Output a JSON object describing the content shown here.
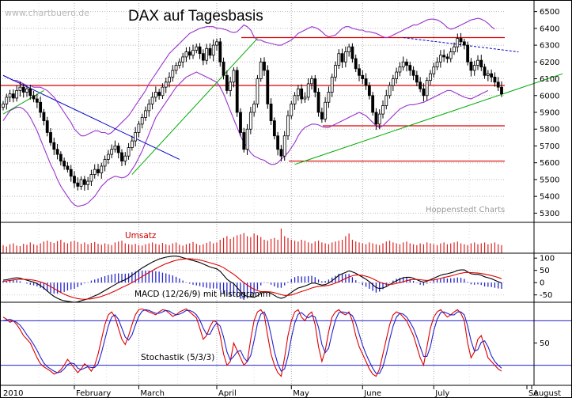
{
  "chart_data": {
    "type": "line",
    "title": "DAX auf Tagesbasis",
    "watermark": "www.chartbuero.de",
    "credit": "Hoppenstedt Charts",
    "x_labels": [
      "2010",
      "February",
      "March",
      "April",
      "May",
      "June",
      "July",
      "August",
      "Se"
    ],
    "price_panel": {
      "y_ticks": [
        5300,
        5400,
        5500,
        5600,
        5700,
        5800,
        5900,
        6000,
        6100,
        6200,
        6300,
        6400,
        6500
      ],
      "ylim": [
        5250,
        6550
      ],
      "horizontal_lines": [
        6345,
        6060,
        5820,
        5610
      ],
      "closes": [
        5950,
        5990,
        6010,
        5985,
        6030,
        6050,
        6020,
        6040,
        6000,
        5980,
        5960,
        5900,
        5850,
        5780,
        5720,
        5680,
        5650,
        5610,
        5580,
        5560,
        5520,
        5480,
        5460,
        5500,
        5470,
        5490,
        5530,
        5560,
        5540,
        5580,
        5620,
        5650,
        5680,
        5700,
        5660,
        5610,
        5640,
        5690,
        5730,
        5780,
        5830,
        5870,
        5910,
        5950,
        5990,
        6020,
        6000,
        6050,
        6080,
        6110,
        6150,
        6180,
        6200,
        6230,
        6260,
        6240,
        6270,
        6290,
        6250,
        6210,
        6280,
        6240,
        6300,
        6320,
        6200,
        6120,
        6030,
        6080,
        6150,
        5900,
        5780,
        5680,
        5800,
        5900,
        5950,
        6100,
        6200,
        6150,
        5950,
        5850,
        5760,
        5680,
        5640,
        5760,
        5880,
        5950,
        6000,
        6040,
        5980,
        5990,
        6070,
        6100,
        6020,
        5900,
        5860,
        5960,
        6020,
        6110,
        6180,
        6250,
        6200,
        6260,
        6290,
        6220,
        6160,
        6120,
        6100,
        6060,
        6000,
        5900,
        5830,
        5890,
        5940,
        6000,
        6060,
        6100,
        6140,
        6170,
        6200,
        6180,
        6150,
        6120,
        6080,
        6040,
        6000,
        6090,
        6130,
        6170,
        6200,
        6240,
        6230,
        6220,
        6260,
        6290,
        6340,
        6320,
        6300,
        6200,
        6150,
        6180,
        6210,
        6170,
        6120,
        6130,
        6110,
        6080,
        6050,
        6010
      ],
      "bollinger_upper": [
        6120,
        6110,
        6100,
        6090,
        6090,
        6080,
        6070,
        6060,
        6060,
        6050,
        6050,
        6050,
        6040,
        6030,
        6010,
        5990,
        5960,
        5930,
        5900,
        5870,
        5840,
        5800,
        5780,
        5760,
        5760,
        5770,
        5780,
        5790,
        5790,
        5780,
        5780,
        5770,
        5780,
        5800,
        5820,
        5840,
        5860,
        5880,
        5910,
        5940,
        5970,
        6000,
        6030,
        6070,
        6100,
        6130,
        6160,
        6190,
        6220,
        6250,
        6270,
        6290,
        6310,
        6330,
        6350,
        6370,
        6380,
        6390,
        6400,
        6405,
        6410,
        6410,
        6410,
        6400,
        6400,
        6395,
        6390,
        6380,
        6375,
        6380,
        6400,
        6420,
        6410,
        6390,
        6350,
        6330,
        6330,
        6320,
        6315,
        6310,
        6305,
        6300,
        6300,
        6310,
        6320,
        6330,
        6350,
        6370,
        6380,
        6390,
        6400,
        6410,
        6405,
        6395,
        6380,
        6360,
        6350,
        6355,
        6360,
        6380,
        6400,
        6410,
        6410,
        6400,
        6395,
        6390,
        6390,
        6380,
        6380,
        6375,
        6370,
        6360,
        6350,
        6345,
        6350,
        6360,
        6370,
        6380,
        6390,
        6400,
        6410,
        6420,
        6420,
        6430,
        6440,
        6450,
        6455,
        6455,
        6450,
        6440,
        6425,
        6405,
        6395,
        6400,
        6410,
        6420,
        6430,
        6440,
        6450,
        6455,
        6460,
        6455,
        6445,
        6430,
        6410,
        6395
      ],
      "bollinger_lower": [
        5850,
        5880,
        5910,
        5920,
        5930,
        5930,
        5920,
        5900,
        5870,
        5830,
        5790,
        5740,
        5690,
        5640,
        5590,
        5550,
        5500,
        5460,
        5430,
        5400,
        5370,
        5350,
        5340,
        5345,
        5350,
        5360,
        5380,
        5400,
        5430,
        5460,
        5480,
        5500,
        5510,
        5520,
        5515,
        5510,
        5515,
        5530,
        5560,
        5590,
        5630,
        5670,
        5720,
        5770,
        5820,
        5870,
        5900,
        5930,
        5960,
        5990,
        6020,
        6050,
        6070,
        6090,
        6110,
        6120,
        6130,
        6140,
        6130,
        6120,
        6110,
        6100,
        6090,
        6080,
        6050,
        6010,
        5960,
        5910,
        5860,
        5810,
        5760,
        5720,
        5690,
        5660,
        5640,
        5630,
        5620,
        5615,
        5600,
        5590,
        5590,
        5600,
        5620,
        5640,
        5660,
        5690,
        5720,
        5760,
        5790,
        5810,
        5820,
        5830,
        5830,
        5825,
        5815,
        5810,
        5810,
        5820,
        5830,
        5840,
        5850,
        5860,
        5870,
        5880,
        5890,
        5900,
        5890,
        5880,
        5860,
        5840,
        5820,
        5810,
        5820,
        5840,
        5860,
        5880,
        5900,
        5920,
        5930,
        5940,
        5945,
        5945,
        5950,
        5955,
        5960,
        5970,
        5980,
        5990,
        6000,
        6010,
        6020,
        6030,
        6030,
        6020,
        6010,
        6000,
        5990,
        5985,
        5980,
        5990,
        6000,
        6010,
        6020,
        6030
      ],
      "trendlines": [
        {
          "color": "#0000cc",
          "from": [
            0,
            6120
          ],
          "to": [
            52,
            5620
          ]
        },
        {
          "color": "#00aa00",
          "from": [
            0,
            5890
          ],
          "to": [
            12,
            6030
          ]
        },
        {
          "color": "#00aa00",
          "from": [
            38,
            5530
          ],
          "to": [
            75,
            6340
          ]
        },
        {
          "color": "#00aa00",
          "from": [
            86,
            5590
          ],
          "to": [
            165,
            6130
          ]
        },
        {
          "color": "#0000cc",
          "from": [
            118,
            6345
          ],
          "to": [
            152,
            6260
          ],
          "dashed": true
        }
      ]
    },
    "volume_panel": {
      "label": "Umsatz",
      "values": [
        18,
        15,
        20,
        22,
        17,
        16,
        21,
        19,
        24,
        20,
        18,
        22,
        26,
        28,
        25,
        23,
        27,
        30,
        24,
        22,
        26,
        28,
        25,
        21,
        24,
        20,
        23,
        25,
        21,
        19,
        22,
        20,
        18,
        24,
        26,
        28,
        22,
        20,
        19,
        21,
        18,
        17,
        20,
        22,
        24,
        21,
        19,
        23,
        20,
        18,
        22,
        24,
        19,
        17,
        20,
        22,
        25,
        21,
        18,
        20,
        23,
        26,
        22,
        24,
        30,
        34,
        38,
        32,
        36,
        40,
        42,
        45,
        38,
        36,
        44,
        40,
        36,
        30,
        28,
        32,
        34,
        30,
        55,
        38,
        34,
        30,
        28,
        26,
        30,
        28,
        24,
        22,
        26,
        28,
        24,
        22,
        20,
        24,
        26,
        28,
        30,
        38,
        44,
        30,
        26,
        24,
        22,
        20,
        24,
        22,
        20,
        18,
        22,
        26,
        28,
        24,
        22,
        20,
        24,
        26,
        22,
        20,
        18,
        22,
        20,
        24,
        22,
        20,
        18,
        22,
        24,
        20,
        22,
        24,
        26,
        22,
        20,
        18,
        22,
        24,
        20,
        22,
        24,
        20,
        22,
        24,
        20,
        18
      ]
    },
    "macd_panel": {
      "label": "MACD (12/26/9) mit Histogramm",
      "y_ticks": [
        100,
        50,
        0,
        -50
      ],
      "ylim": [
        -80,
        120
      ],
      "macd": [
        10,
        12,
        15,
        18,
        20,
        18,
        14,
        10,
        6,
        2,
        -4,
        -12,
        -22,
        -34,
        -46,
        -56,
        -64,
        -70,
        -74,
        -76,
        -78,
        -80,
        -78,
        -74,
        -70,
        -66,
        -60,
        -54,
        -48,
        -40,
        -32,
        -24,
        -16,
        -8,
        0,
        6,
        12,
        20,
        30,
        40,
        50,
        60,
        68,
        76,
        84,
        90,
        96,
        100,
        104,
        106,
        108,
        108,
        106,
        102,
        98,
        94,
        90,
        86,
        82,
        76,
        70,
        64,
        60,
        56,
        46,
        30,
        14,
        4,
        -4,
        -20,
        -36,
        -50,
        -56,
        -58,
        -60,
        -54,
        -44,
        -36,
        -38,
        -44,
        -52,
        -60,
        -64,
        -60,
        -50,
        -40,
        -30,
        -22,
        -18,
        -14,
        -8,
        -2,
        -2,
        -6,
        -10,
        -8,
        -2,
        8,
        18,
        30,
        36,
        42,
        48,
        44,
        38,
        30,
        22,
        14,
        4,
        -8,
        -20,
        -24,
        -22,
        -16,
        -8,
        0,
        8,
        14,
        20,
        22,
        22,
        18,
        12,
        6,
        2,
        6,
        12,
        18,
        24,
        30,
        34,
        36,
        40,
        44,
        50,
        52,
        52,
        44,
        36,
        34,
        34,
        30,
        24,
        20,
        16,
        10,
        4,
        -2
      ],
      "signal": [
        5,
        7,
        9,
        11,
        13,
        14,
        14,
        13,
        12,
        10,
        7,
        3,
        -2,
        -8,
        -16,
        -24,
        -32,
        -40,
        -47,
        -53,
        -58,
        -62,
        -65,
        -67,
        -68,
        -67,
        -66,
        -63,
        -60,
        -56,
        -51,
        -46,
        -40,
        -34,
        -27,
        -20,
        -14,
        -7,
        0,
        8,
        16,
        25,
        33,
        41,
        49,
        57,
        64,
        71,
        77,
        82,
        87,
        91,
        94,
        96,
        97,
        97,
        96,
        94,
        92,
        89,
        85,
        81,
        77,
        73,
        68,
        61,
        52,
        43,
        34,
        23,
        11,
        0,
        -10,
        -19,
        -27,
        -33,
        -36,
        -37,
        -37,
        -38,
        -41,
        -45,
        -49,
        -52,
        -52,
        -50,
        -46,
        -41,
        -36,
        -32,
        -27,
        -22,
        -18,
        -15,
        -14,
        -13,
        -11,
        -7,
        -2,
        4,
        10,
        17,
        23,
        28,
        31,
        31,
        29,
        26,
        22,
        16,
        9,
        2,
        -3,
        -6,
        -7,
        -6,
        -3,
        0,
        4,
        8,
        11,
        13,
        13,
        12,
        10,
        9,
        10,
        11,
        14,
        17,
        21,
        24,
        27,
        31,
        35,
        38,
        41,
        42,
        41,
        40,
        39,
        37,
        35,
        32,
        29,
        25,
        21,
        16
      ]
    },
    "stoch_panel": {
      "label": "Stochastik (5/3/3)",
      "y_ticks": [
        50
      ],
      "ylim": [
        -5,
        105
      ],
      "upper_level": 80,
      "lower_level": 20,
      "k": [
        85,
        82,
        78,
        80,
        75,
        68,
        60,
        55,
        50,
        40,
        30,
        22,
        18,
        15,
        12,
        8,
        10,
        14,
        20,
        28,
        22,
        16,
        10,
        15,
        22,
        18,
        12,
        20,
        35,
        55,
        75,
        88,
        92,
        85,
        70,
        55,
        48,
        60,
        75,
        88,
        95,
        96,
        94,
        92,
        90,
        88,
        92,
        95,
        94,
        90,
        86,
        88,
        92,
        94,
        96,
        92,
        88,
        84,
        70,
        55,
        60,
        72,
        80,
        78,
        60,
        35,
        20,
        25,
        50,
        40,
        30,
        20,
        25,
        55,
        80,
        92,
        95,
        88,
        60,
        35,
        20,
        10,
        5,
        30,
        60,
        80,
        92,
        95,
        85,
        80,
        88,
        92,
        75,
        45,
        25,
        40,
        65,
        85,
        92,
        95,
        90,
        88,
        92,
        80,
        60,
        45,
        35,
        25,
        15,
        8,
        5,
        15,
        35,
        55,
        75,
        88,
        92,
        90,
        85,
        80,
        70,
        60,
        45,
        30,
        20,
        45,
        70,
        85,
        92,
        95,
        90,
        85,
        88,
        92,
        95,
        90,
        80,
        50,
        30,
        38,
        55,
        60,
        45,
        30,
        25,
        20,
        15,
        12
      ],
      "d": [
        80,
        81,
        82,
        80,
        78,
        74,
        68,
        61,
        55,
        48,
        40,
        31,
        23,
        18,
        15,
        12,
        10,
        11,
        15,
        21,
        23,
        22,
        16,
        14,
        16,
        18,
        17,
        17,
        22,
        37,
        55,
        73,
        85,
        88,
        82,
        70,
        58,
        54,
        61,
        74,
        86,
        93,
        95,
        94,
        92,
        90,
        90,
        92,
        94,
        93,
        90,
        88,
        89,
        91,
        94,
        94,
        92,
        88,
        81,
        70,
        62,
        62,
        71,
        77,
        73,
        58,
        38,
        27,
        32,
        38,
        40,
        30,
        25,
        33,
        53,
        76,
        89,
        92,
        81,
        61,
        38,
        22,
        12,
        15,
        32,
        57,
        77,
        89,
        91,
        87,
        84,
        87,
        85,
        71,
        48,
        37,
        43,
        63,
        81,
        91,
        92,
        91,
        90,
        87,
        77,
        62,
        47,
        35,
        25,
        16,
        9,
        9,
        18,
        35,
        55,
        73,
        85,
        90,
        89,
        85,
        78,
        70,
        58,
        45,
        32,
        32,
        45,
        67,
        82,
        91,
        92,
        90,
        88,
        88,
        92,
        92,
        88,
        73,
        53,
        39,
        41,
        51,
        53,
        45,
        33,
        25,
        20,
        16
      ]
    }
  }
}
